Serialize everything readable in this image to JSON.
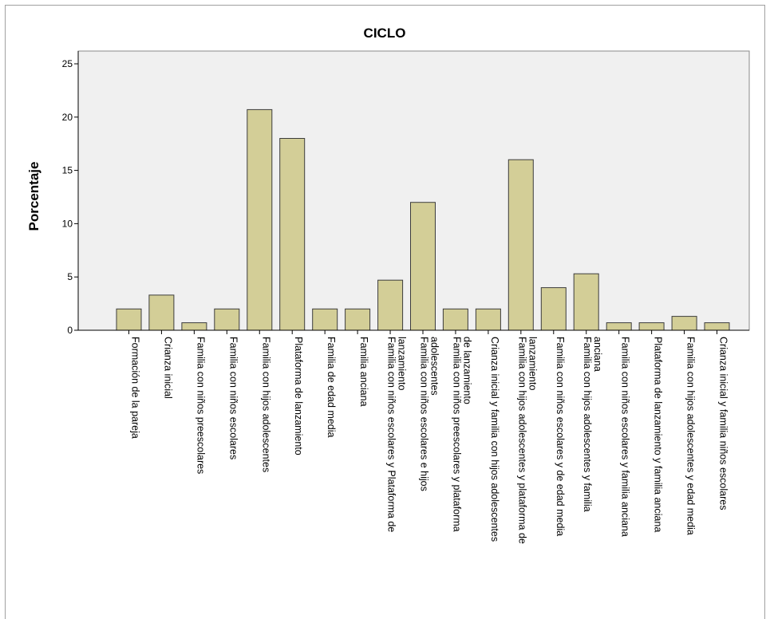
{
  "chart_data": {
    "type": "bar",
    "title": "CICLO",
    "xlabel": "",
    "ylabel": "Porcentaje",
    "ylim": [
      0,
      25
    ],
    "yticks": [
      "0",
      "5",
      "10",
      "15",
      "20",
      "25"
    ],
    "grid": false,
    "legend": "none",
    "colors": {
      "plot_background": "#f0f0f0",
      "bar_fill": "#d3ce97",
      "bar_stroke": "#3c3c3c",
      "axis": "#000000"
    },
    "categories": [
      [
        "Formación de la pareja"
      ],
      [
        "Crianza inicial"
      ],
      [
        "Familia con niños preescolares"
      ],
      [
        "Familia con niños escolares"
      ],
      [
        "Familia con hijos adolescentes"
      ],
      [
        "Plataforma de lanzamiento"
      ],
      [
        "Familia de edad media"
      ],
      [
        "Familia anciana"
      ],
      [
        "Familia con niños escolares y Plataforma de",
        "lanzamiento"
      ],
      [
        "Familia con niños escolares e hijos",
        "adolescentes"
      ],
      [
        "Familia con niños preescolares y plataforma",
        "de lanzamiento"
      ],
      [
        "Crianza inicial y familia con hijos adolescentes"
      ],
      [
        "Familia con hijos adolescentes y plataforma de",
        "lanzamiento"
      ],
      [
        "Familia con niños escolares y de edad media"
      ],
      [
        "Familia con hijos adolescentes y familia",
        "anciana"
      ],
      [
        "Familia con niños escolares y familia anciana"
      ],
      [
        "Plataforma de lanzamiento y familia anciana"
      ],
      [
        "Familia con hijos adolescentes y edad media"
      ],
      [
        "Crianza inicial y familia niños escolares"
      ]
    ],
    "values": [
      2.0,
      3.3,
      0.7,
      2.0,
      20.7,
      18.0,
      2.0,
      2.0,
      4.7,
      12.0,
      2.0,
      2.0,
      16.0,
      4.0,
      5.3,
      0.7,
      0.7,
      1.3,
      0.7
    ]
  }
}
